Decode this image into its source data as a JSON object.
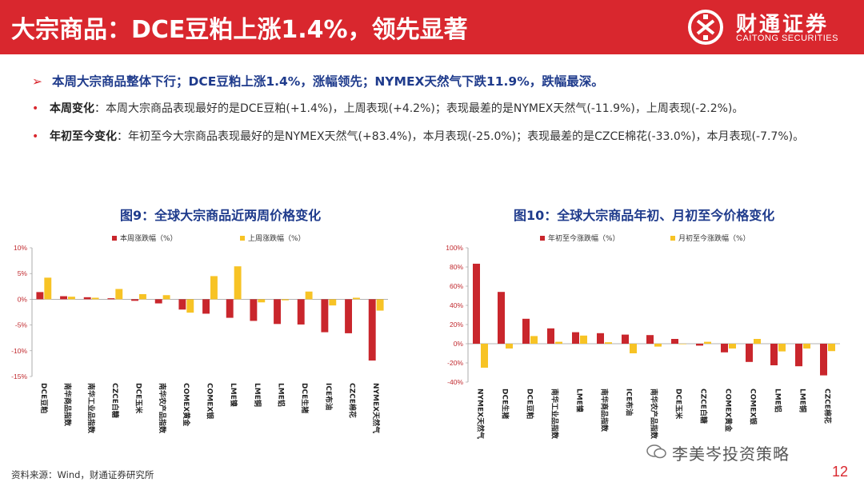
{
  "header": {
    "title": "大宗商品：DCE豆粕上涨1.4%，领先显著",
    "logo_cn": "财通证券",
    "logo_en": "CAITONG SECURITIES"
  },
  "summary": "本周大宗商品整体下行；DCE豆粕上涨1.4%，涨幅领先；NYMEX天然气下跌11.9%，跌幅最深。",
  "bullets": [
    {
      "label": "本周变化",
      "text": "：本周大宗商品表现最好的是DCE豆粕(+1.4%)，上周表现(+4.2%)；表现最差的是NYMEX天然气(-11.9%)，上周表现(-2.2%)。"
    },
    {
      "label": "年初至今变化",
      "text": "：年初至今大宗商品表现最好的是NYMEX天然气(+83.4%)，本月表现(-25.0%)；表现最差的是CZCE棉花(-33.0%)，本月表现(-7.7%)。"
    }
  ],
  "colors": {
    "red": "#c9262c",
    "yellow": "#f7c325",
    "brand": "#d9272e",
    "title_blue": "#1f3b8c"
  },
  "chart_data": [
    {
      "type": "bar",
      "title": "图9：全球大宗商品近两周价格变化",
      "categories": [
        "DCE豆粕",
        "南华商品指数",
        "南华工业品指数",
        "CZCE白糖",
        "DCE玉米",
        "南华农产品指数",
        "COMEX黄金",
        "COMEX银",
        "LME镍",
        "LME铜",
        "LME铝",
        "DCE生猪",
        "ICE布油",
        "CZCE棉花",
        "NYMEX天然气"
      ],
      "series": [
        {
          "name": "本周涨跌幅（%）",
          "values": [
            1.4,
            0.6,
            0.4,
            0.2,
            -0.3,
            -0.8,
            -2.0,
            -2.8,
            -3.6,
            -4.2,
            -4.8,
            -4.9,
            -6.4,
            -6.6,
            -11.9
          ]
        },
        {
          "name": "上周涨跌幅（%）",
          "values": [
            4.2,
            0.5,
            0.3,
            2.0,
            1.0,
            0.8,
            -2.6,
            4.5,
            6.4,
            -0.6,
            -0.2,
            1.5,
            -1.2,
            0.3,
            -2.2
          ]
        }
      ],
      "ylim": [
        -15,
        10
      ],
      "yticks": [
        "10%",
        "5%",
        "0%",
        "-5%",
        "-10%",
        "-15%"
      ],
      "legend": "top"
    },
    {
      "type": "bar",
      "title": "图10：全球大宗商品年初、月初至今价格变化",
      "categories": [
        "NYMEX天然气",
        "DCE生猪",
        "DCE豆粕",
        "南华工业品指数",
        "LME镍",
        "南华商品指数",
        "ICE布油",
        "南华农产品指数",
        "DCE玉米",
        "CZCE白糖",
        "COMEX黄金",
        "COMEX银",
        "LME铝",
        "LME铜",
        "CZCE棉花"
      ],
      "series": [
        {
          "name": "年初至今涨跌幅（%）",
          "values": [
            83.4,
            54.0,
            26.0,
            16.0,
            12.0,
            11.0,
            9.5,
            9.0,
            5.0,
            -2.0,
            -9.0,
            -19.0,
            -22.5,
            -23.5,
            -33.0
          ]
        },
        {
          "name": "月初至今涨跌幅（%）",
          "values": [
            -25.0,
            -5.0,
            8.0,
            2.0,
            8.5,
            1.5,
            -10.0,
            -3.0,
            -0.5,
            2.0,
            -5.0,
            5.0,
            -8.0,
            -5.0,
            -7.7
          ]
        }
      ],
      "ylim": [
        -40,
        100
      ],
      "yticks": [
        "100%",
        "80%",
        "60%",
        "40%",
        "20%",
        "0%",
        "-20%",
        "-40%"
      ],
      "legend": "top"
    }
  ],
  "footer": {
    "source": "资料来源：Wind，财通证券研究所",
    "watermark": "李美岑投资策略",
    "page_number": "12"
  }
}
